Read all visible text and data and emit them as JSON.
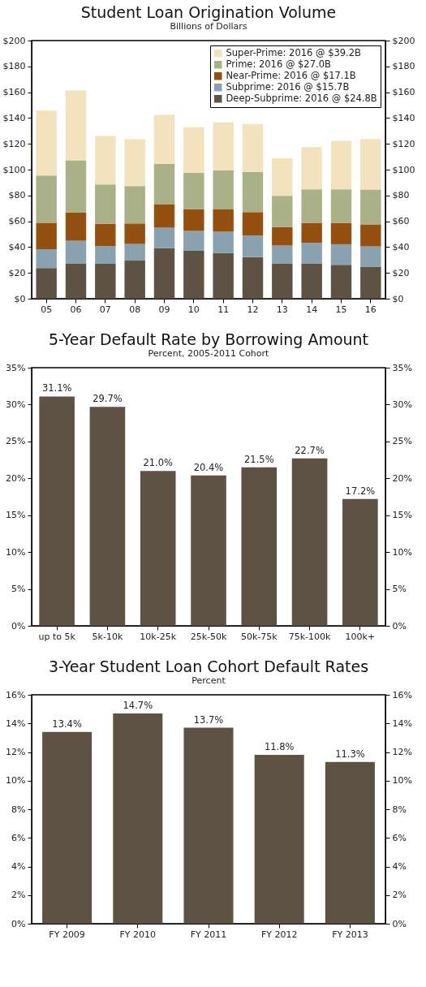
{
  "chart_data": [
    {
      "type": "bar",
      "title": "Student Loan Origination Volume",
      "subtitle": "Billions of Dollars",
      "stacked": true,
      "legend": "top right",
      "categories": [
        "05",
        "06",
        "07",
        "08",
        "09",
        "10",
        "11",
        "12",
        "13",
        "14",
        "15",
        "16"
      ],
      "series": [
        {
          "name": "Deep-Subprime: 2016 @ $24.8B",
          "color": "#5e5245",
          "values": [
            23.7,
            27.4,
            27.0,
            29.5,
            39.1,
            37.1,
            35.4,
            32.3,
            27.4,
            27.4,
            26.2,
            24.8
          ]
        },
        {
          "name": "Subprime: 2016 @ $15.7B",
          "color": "#8aa2b0",
          "values": [
            14.6,
            17.5,
            13.8,
            12.9,
            15.9,
            15.4,
            16.5,
            16.7,
            13.8,
            15.9,
            16.0,
            15.7
          ]
        },
        {
          "name": "Near-Prime: 2016 @ $17.1B",
          "color": "#945011",
          "values": [
            20.2,
            22.0,
            17.3,
            15.9,
            18.3,
            16.9,
            17.3,
            18.1,
            14.4,
            15.4,
            16.5,
            17.1
          ]
        },
        {
          "name": "Prime: 2016 @ $27.0B",
          "color": "#aab088",
          "values": [
            36.9,
            40.4,
            30.5,
            29.0,
            31.1,
            28.2,
            30.3,
            31.1,
            24.1,
            26.0,
            26.0,
            27.0
          ]
        },
        {
          "name": "Super-Prime: 2016 @ $39.2B",
          "color": "#f2e2bd",
          "values": [
            50.4,
            54.0,
            37.5,
            36.3,
            38.1,
            35.3,
            37.1,
            37.1,
            29.1,
            32.7,
            37.4,
            39.2
          ]
        }
      ],
      "ylim": [
        0,
        200
      ],
      "yticks": [
        {
          "value": 0,
          "label": "$0"
        },
        {
          "value": 20,
          "label": "$20"
        },
        {
          "value": 40,
          "label": "$40"
        },
        {
          "value": 60,
          "label": "$60"
        },
        {
          "value": 80,
          "label": "$80"
        },
        {
          "value": 100,
          "label": "$100"
        },
        {
          "value": 120,
          "label": "$120"
        },
        {
          "value": 140,
          "label": "$140"
        },
        {
          "value": 160,
          "label": "$160"
        },
        {
          "value": 180,
          "label": "$180"
        },
        {
          "value": 200,
          "label": "$200"
        }
      ],
      "y2lim": [
        0,
        200
      ],
      "y2ticks": [
        {
          "value": 0,
          "label": "$0"
        },
        {
          "value": 20,
          "label": "$20"
        },
        {
          "value": 40,
          "label": "$40"
        },
        {
          "value": 60,
          "label": "$60"
        },
        {
          "value": 80,
          "label": "$80"
        },
        {
          "value": 100,
          "label": "$100"
        },
        {
          "value": 120,
          "label": "$120"
        },
        {
          "value": 140,
          "label": "$140"
        },
        {
          "value": 160,
          "label": "$160"
        },
        {
          "value": 180,
          "label": "$180"
        },
        {
          "value": 200,
          "label": "$200"
        }
      ]
    },
    {
      "type": "bar",
      "title": "5-Year Default Rate by Borrowing Amount",
      "subtitle": "Percent, 2005-2011 Cohort",
      "categories": [
        "up to 5k",
        "5k-10k",
        "10k-25k",
        "25k-50k",
        "50k-75k",
        "75k-100k",
        "100k+"
      ],
      "series": [
        {
          "color": "#5e5245",
          "values": [
            31.1,
            29.7,
            21.0,
            20.4,
            21.5,
            22.7,
            17.2
          ],
          "value_labels": [
            "31.1%",
            "29.7%",
            "21.0%",
            "20.4%",
            "21.5%",
            "22.7%",
            "17.2%"
          ]
        }
      ],
      "ylim": [
        0,
        35
      ],
      "yticks": [
        {
          "value": 0,
          "label": "0%"
        },
        {
          "value": 5,
          "label": "5%"
        },
        {
          "value": 10,
          "label": "10%"
        },
        {
          "value": 15,
          "label": "15%"
        },
        {
          "value": 20,
          "label": "20%"
        },
        {
          "value": 25,
          "label": "25%"
        },
        {
          "value": 30,
          "label": "30%"
        },
        {
          "value": 35,
          "label": "35%"
        }
      ],
      "y2lim": [
        0,
        35
      ],
      "y2ticks": [
        {
          "value": 0,
          "label": "0%"
        },
        {
          "value": 5,
          "label": "5%"
        },
        {
          "value": 10,
          "label": "10%"
        },
        {
          "value": 15,
          "label": "15%"
        },
        {
          "value": 20,
          "label": "20%"
        },
        {
          "value": 25,
          "label": "25%"
        },
        {
          "value": 30,
          "label": "30%"
        },
        {
          "value": 35,
          "label": "35%"
        }
      ]
    },
    {
      "type": "bar",
      "title": "3-Year Student Loan Cohort Default Rates",
      "subtitle": "Percent",
      "categories": [
        "FY 2009",
        "FY 2010",
        "FY 2011",
        "FY 2012",
        "FY 2013"
      ],
      "series": [
        {
          "color": "#5e5245",
          "values": [
            13.4,
            14.7,
            13.7,
            11.8,
            11.3
          ],
          "value_labels": [
            "13.4%",
            "14.7%",
            "13.7%",
            "11.8%",
            "11.3%"
          ]
        }
      ],
      "ylim": [
        0,
        16
      ],
      "yticks": [
        {
          "value": 0,
          "label": "0%"
        },
        {
          "value": 2,
          "label": "2%"
        },
        {
          "value": 4,
          "label": "4%"
        },
        {
          "value": 6,
          "label": "6%"
        },
        {
          "value": 8,
          "label": "8%"
        },
        {
          "value": 10,
          "label": "10%"
        },
        {
          "value": 12,
          "label": "12%"
        },
        {
          "value": 14,
          "label": "14%"
        },
        {
          "value": 16,
          "label": "16%"
        }
      ],
      "y2lim": [
        0,
        16
      ],
      "y2ticks": [
        {
          "value": 0,
          "label": "0%"
        },
        {
          "value": 2,
          "label": "2%"
        },
        {
          "value": 4,
          "label": "4%"
        },
        {
          "value": 6,
          "label": "6%"
        },
        {
          "value": 8,
          "label": "8%"
        },
        {
          "value": 10,
          "label": "10%"
        },
        {
          "value": 12,
          "label": "12%"
        },
        {
          "value": 14,
          "label": "14%"
        },
        {
          "value": 16,
          "label": "16%"
        }
      ]
    }
  ]
}
